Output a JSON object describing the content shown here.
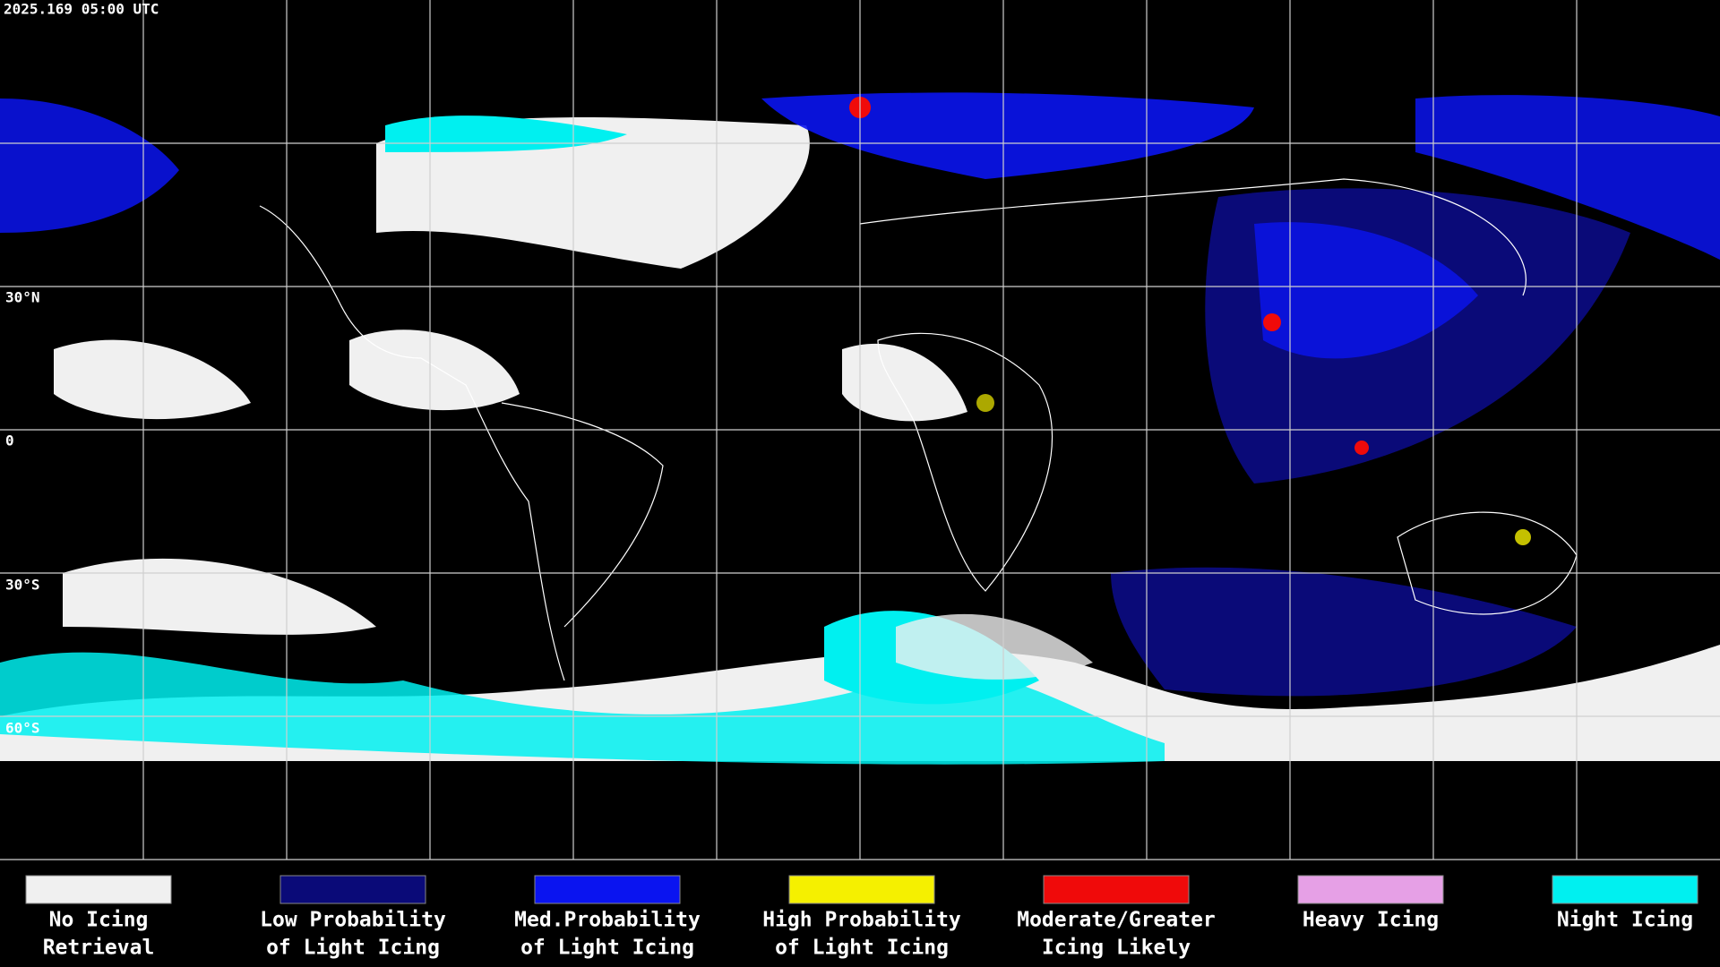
{
  "header": {
    "timestamp": "2025.169 05:00 UTC"
  },
  "map": {
    "lat_labels": [
      "30°N",
      "0",
      "30°S",
      "60°S"
    ]
  },
  "legend": {
    "items": [
      {
        "label": [
          "No Icing",
          "Retrieval"
        ],
        "color": "#f0f0f0"
      },
      {
        "label": [
          "Low Probability",
          "of Light Icing"
        ],
        "color": "#0a0a78"
      },
      {
        "label": [
          "Med.Probability",
          "of Light Icing"
        ],
        "color": "#0a14f0"
      },
      {
        "label": [
          "High Probability",
          "of Light Icing"
        ],
        "color": "#f5f000"
      },
      {
        "label": [
          "Moderate/Greater",
          "Icing Likely"
        ],
        "color": "#f00a0a"
      },
      {
        "label": [
          "Heavy Icing"
        ],
        "color": "#e6a0e6"
      },
      {
        "label": [
          "Night Icing"
        ],
        "color": "#00f0f0"
      }
    ]
  }
}
